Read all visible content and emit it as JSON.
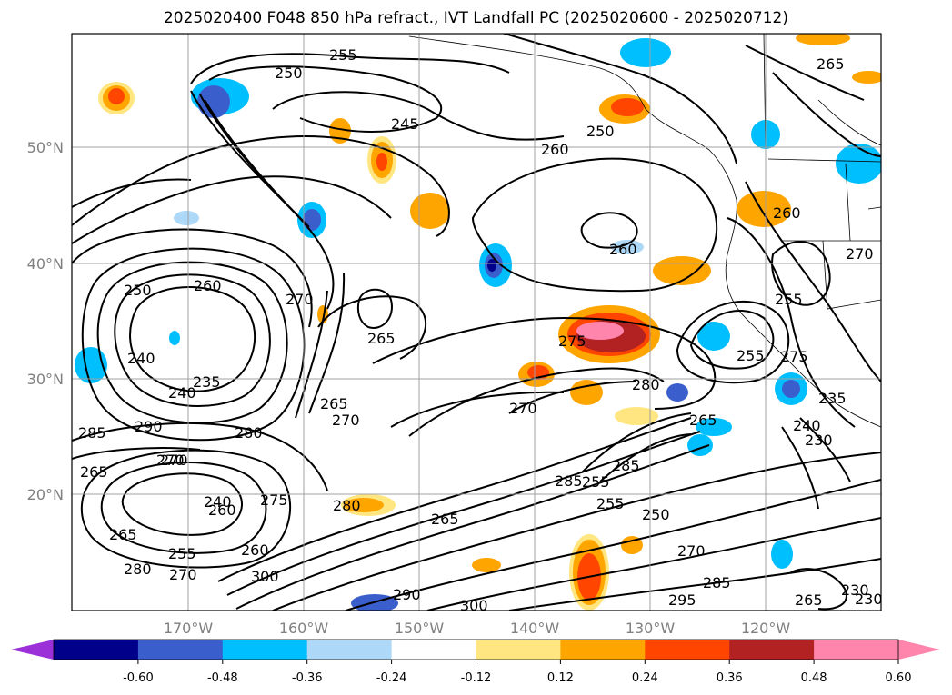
{
  "title": "2025020400 F048 850 hPa refract., IVT Landfall PC (2025020600 - 2025020712)",
  "lat_labels": [
    "50°N",
    "40°N",
    "30°N",
    "20°N"
  ],
  "lon_labels": [
    "170°W",
    "160°W",
    "150°W",
    "140°W",
    "130°W",
    "120°W"
  ],
  "colorbar": {
    "ticks": [
      "-0.60",
      "-0.48",
      "-0.36",
      "-0.24",
      "-0.12",
      "0.12",
      "0.24",
      "0.36",
      "0.48",
      "0.60"
    ],
    "colors": {
      "under": "#9b30d9",
      "bins": [
        "#00008b",
        "#3a5fcd",
        "#00bfff",
        "#add8f7",
        "#ffffff",
        "#ffe680",
        "#ffa500",
        "#ff4500",
        "#b22222",
        "#ff85ad"
      ],
      "over": "#ff85ad"
    }
  },
  "contour_labels": [
    "250",
    "245",
    "260",
    "265",
    "250",
    "255",
    "260",
    "250",
    "260",
    "270",
    "265",
    "265",
    "270",
    "260",
    "270",
    "280",
    "280",
    "275",
    "270",
    "265",
    "285",
    "255",
    "250",
    "270",
    "285",
    "295",
    "300",
    "290",
    "300",
    "280",
    "270",
    "255",
    "260",
    "265",
    "275",
    "285",
    "290",
    "235",
    "240",
    "265",
    "240",
    "270",
    "255",
    "260",
    "265",
    "230",
    "235",
    "230",
    "240",
    "255",
    "275",
    "270",
    "265",
    "285",
    "280",
    "255",
    "230",
    "240"
  ]
}
